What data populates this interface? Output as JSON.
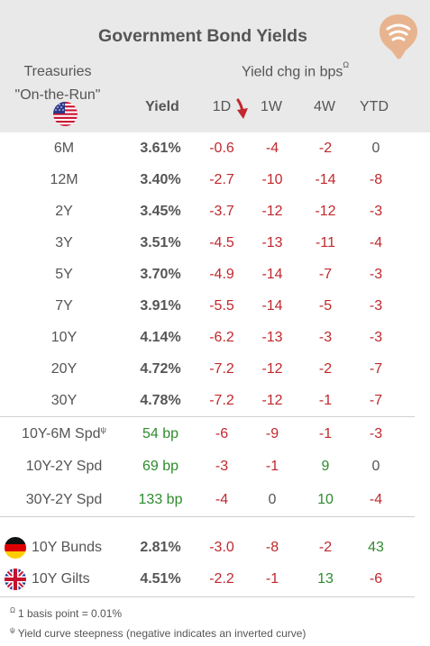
{
  "title": "Government Bond Yields",
  "treasuries_line1": "Treasuries",
  "treasuries_line2": "\"On-the-Run\"",
  "yield_chg_label": "Yield chg in bps",
  "yield_chg_sup": "Ω",
  "columns": {
    "yield": "Yield",
    "d1": "1D",
    "w1": "1W",
    "w4": "4W",
    "ytd": "YTD"
  },
  "treasury_rows": [
    {
      "label": "6M",
      "yield": "3.61%",
      "d1": "-0.6",
      "w1": "-4",
      "w4": "-2",
      "ytd": "0"
    },
    {
      "label": "12M",
      "yield": "3.40%",
      "d1": "-2.7",
      "w1": "-10",
      "w4": "-14",
      "ytd": "-8"
    },
    {
      "label": "2Y",
      "yield": "3.45%",
      "d1": "-3.7",
      "w1": "-12",
      "w4": "-12",
      "ytd": "-3"
    },
    {
      "label": "3Y",
      "yield": "3.51%",
      "d1": "-4.5",
      "w1": "-13",
      "w4": "-11",
      "ytd": "-4"
    },
    {
      "label": "5Y",
      "yield": "3.70%",
      "d1": "-4.9",
      "w1": "-14",
      "w4": "-7",
      "ytd": "-3"
    },
    {
      "label": "7Y",
      "yield": "3.91%",
      "d1": "-5.5",
      "w1": "-14",
      "w4": "-5",
      "ytd": "-3"
    },
    {
      "label": "10Y",
      "yield": "4.14%",
      "d1": "-6.2",
      "w1": "-13",
      "w4": "-3",
      "ytd": "-3"
    },
    {
      "label": "20Y",
      "yield": "4.72%",
      "d1": "-7.2",
      "w1": "-12",
      "w4": "-2",
      "ytd": "-7"
    },
    {
      "label": "30Y",
      "yield": "4.78%",
      "d1": "-7.2",
      "w1": "-12",
      "w4": "-1",
      "ytd": "-7"
    }
  ],
  "spread_rows": [
    {
      "label": "10Y-6M Spd",
      "sup": "ψ",
      "yield": "54 bp",
      "d1": "-6",
      "w1": "-9",
      "w4": "-1",
      "ytd": "-3"
    },
    {
      "label": "10Y-2Y Spd",
      "sup": "",
      "yield": "69 bp",
      "d1": "-3",
      "w1": "-1",
      "w4": "9",
      "ytd": "0"
    },
    {
      "label": "30Y-2Y Spd",
      "sup": "",
      "yield": "133 bp",
      "d1": "-4",
      "w1": "0",
      "w4": "10",
      "ytd": "-4"
    }
  ],
  "intl_rows": [
    {
      "label": "10Y Bunds",
      "flag": "germany-flag-icon",
      "yield": "2.81%",
      "d1": "-3.0",
      "w1": "-8",
      "w4": "-2",
      "ytd": "43"
    },
    {
      "label": "10Y Gilts",
      "flag": "uk-flag-icon",
      "yield": "4.51%",
      "d1": "-2.2",
      "w1": "-1",
      "w4": "13",
      "ytd": "-6"
    }
  ],
  "footnotes": [
    {
      "sym": "Ω",
      "text": "1 basis point = 0.01%"
    },
    {
      "sym": "ψ",
      "text": "Yield curve steepness (negative indicates an inverted curve)"
    }
  ],
  "colors": {
    "header_bg": "#e9e9e9",
    "negative": "#c0282d",
    "positive": "#2e8b2e",
    "text": "#555555",
    "logo": "#e8b48f"
  }
}
